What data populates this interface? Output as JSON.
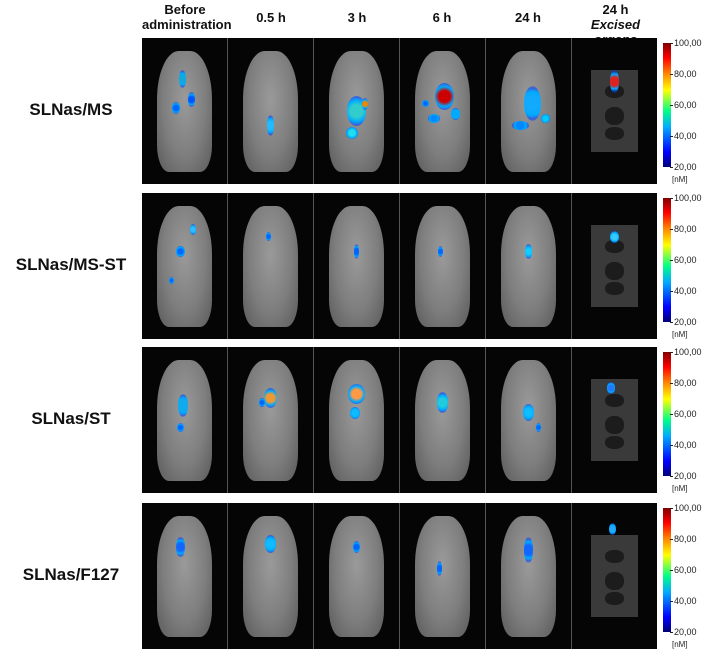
{
  "headers": [
    {
      "line1": "Before",
      "line2": "administration"
    },
    {
      "line1": "0.5 h"
    },
    {
      "line1": "3 h"
    },
    {
      "line1": "6 h"
    },
    {
      "line1": "24 h"
    },
    {
      "line1": "24 h",
      "line2_italic": "Excised organs"
    }
  ],
  "rows": [
    {
      "label": "SLNas/MS"
    },
    {
      "label": "SLNas/MS-ST"
    },
    {
      "label": "SLNas/ST"
    },
    {
      "label": "SLNas/F127"
    }
  ],
  "colorbar": {
    "ticks": [
      "100,00",
      "80,00",
      "60,00",
      "40,00",
      "20,00"
    ],
    "unit": "[nM]",
    "range": [
      20,
      100
    ]
  }
}
